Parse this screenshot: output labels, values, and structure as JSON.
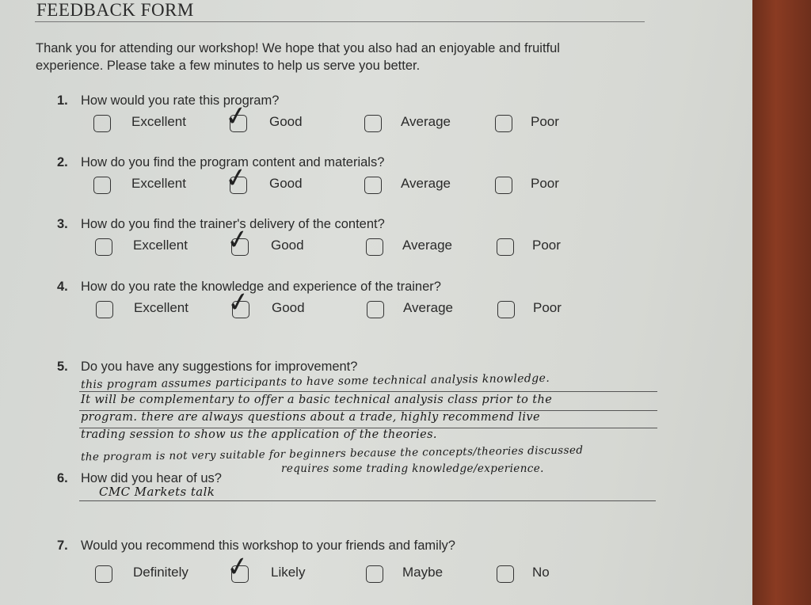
{
  "form": {
    "title": "FEEDBACK FORM",
    "intro_line1": "Thank you for attending our workshop! We hope that you also had an enjoyable and fruitful",
    "intro_line2": "experience. Please take a few minutes to help us serve you better.",
    "rating_questions": [
      {
        "number": "1.",
        "text": "How would you rate this program?",
        "options": [
          "Excellent",
          "Good",
          "Average",
          "Poor"
        ],
        "selected": "Good"
      },
      {
        "number": "2.",
        "text": "How do you find the program content and materials?",
        "options": [
          "Excellent",
          "Good",
          "Average",
          "Poor"
        ],
        "selected": "Good"
      },
      {
        "number": "3.",
        "text": "How do you find the trainer's delivery of the content?",
        "options": [
          "Excellent",
          "Good",
          "Average",
          "Poor"
        ],
        "selected": "Good"
      },
      {
        "number": "4.",
        "text": "How do you rate the knowledge and experience of the trainer?",
        "options": [
          "Excellent",
          "Good",
          "Average",
          "Poor"
        ],
        "selected": "Good"
      }
    ],
    "q5": {
      "number": "5.",
      "text": "Do you have any suggestions for improvement?",
      "answer_lines": [
        "this program assumes participants to have some technical analysis knowledge.",
        "It will be complementary to offer a basic technical analysis class prior to the",
        "program. there are always questions about a trade, highly recommend live",
        "trading session to show us the application of the theories.",
        "the program is not very suitable for beginners because the concepts/theories discussed",
        "requires some trading knowledge/experience."
      ]
    },
    "q6": {
      "number": "6.",
      "text": "How did you hear of us?",
      "answer": "CMC Markets talk"
    },
    "q7": {
      "number": "7.",
      "text": "Would you recommend this workshop to your friends and family?",
      "options": [
        "Definitely",
        "Likely",
        "Maybe",
        "No"
      ],
      "selected": "Likely"
    },
    "check_mark": "✓"
  }
}
